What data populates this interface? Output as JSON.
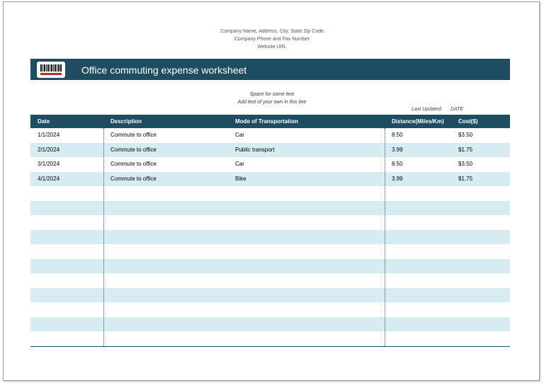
{
  "header": {
    "lines": [
      "Company Name, Address, City, State  Zip Code",
      "Company Phone and Fax Number",
      "Website URL"
    ],
    "title": "Office commuting expense worksheet"
  },
  "notes": [
    "Space for some text",
    "Add text of your own in this line"
  ],
  "last_updated": {
    "label": "Last Updated:",
    "value": "DATE"
  },
  "table": {
    "columns": [
      "Date",
      "Description",
      "Mode of Transportation",
      "Distance(Miles/Km)",
      "Cost($)"
    ],
    "rows": [
      [
        "1/1/2024",
        "Commute to office",
        "Car",
        "8.50",
        "$3.50"
      ],
      [
        "2/1/2024",
        "Commute to office",
        "Public transport",
        "3.99",
        "$1.75"
      ],
      [
        "3/1/2024",
        "Commute to office",
        "Car",
        "8.50",
        "$3.50"
      ],
      [
        "4/1/2024",
        "Commute to office",
        "Bike",
        "3.99",
        "$1.75"
      ]
    ]
  }
}
